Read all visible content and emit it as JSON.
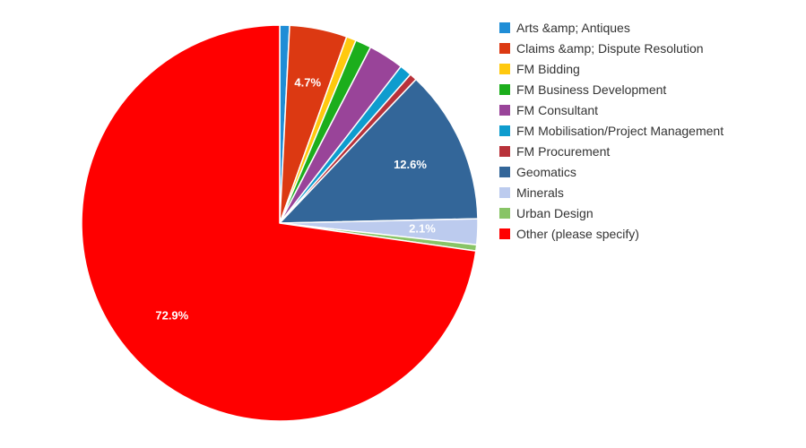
{
  "chart_data": {
    "type": "pie",
    "title": "",
    "legend_position": "right",
    "slices": [
      {
        "label": "Arts &amp; Antiques",
        "value": 0.8,
        "color": "#1f8dd6",
        "display_label": ""
      },
      {
        "label": "Claims &amp; Dispute Resolution",
        "value": 4.7,
        "color": "#dc3912",
        "display_label": "4.7%"
      },
      {
        "label": "FM Bidding",
        "value": 0.8,
        "color": "#ffc90e",
        "display_label": ""
      },
      {
        "label": "FM Business Development",
        "value": 1.3,
        "color": "#1cae1c",
        "display_label": ""
      },
      {
        "label": "FM Consultant",
        "value": 2.9,
        "color": "#994499",
        "display_label": ""
      },
      {
        "label": "FM Mobilisation/Project Management",
        "value": 1.0,
        "color": "#0e9cce",
        "display_label": ""
      },
      {
        "label": "FM Procurement",
        "value": 0.6,
        "color": "#b8323a",
        "display_label": ""
      },
      {
        "label": "Geomatics",
        "value": 12.6,
        "color": "#336699",
        "display_label": "12.6%"
      },
      {
        "label": "Minerals",
        "value": 2.1,
        "color": "#bccbee",
        "display_label": "2.1%"
      },
      {
        "label": "Urban Design",
        "value": 0.5,
        "color": "#88c466",
        "display_label": ""
      },
      {
        "label": "Other (please specify)",
        "value": 72.9,
        "color": "#ff0000",
        "display_label": "72.9%"
      }
    ]
  }
}
